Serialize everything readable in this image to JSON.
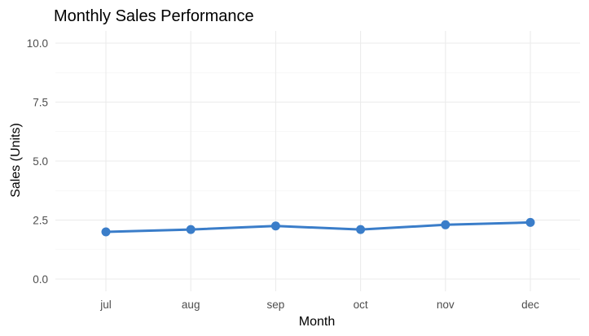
{
  "chart_data": {
    "type": "line",
    "title": "Monthly Sales Performance",
    "xlabel": "Month",
    "ylabel": "Sales (Units)",
    "categories": [
      "jul",
      "aug",
      "sep",
      "oct",
      "nov",
      "dec"
    ],
    "series": [
      {
        "values": [
          2.0,
          2.1,
          2.25,
          2.1,
          2.3,
          2.4
        ],
        "color": "#3a7dc9"
      }
    ],
    "ylim": [
      0,
      10
    ],
    "yticks": [
      0.0,
      2.5,
      5.0,
      7.5,
      10.0
    ],
    "ytick_labels": [
      "0.0",
      "2.5",
      "5.0",
      "7.5",
      "10.0"
    ],
    "grid": true,
    "legend": "none"
  }
}
